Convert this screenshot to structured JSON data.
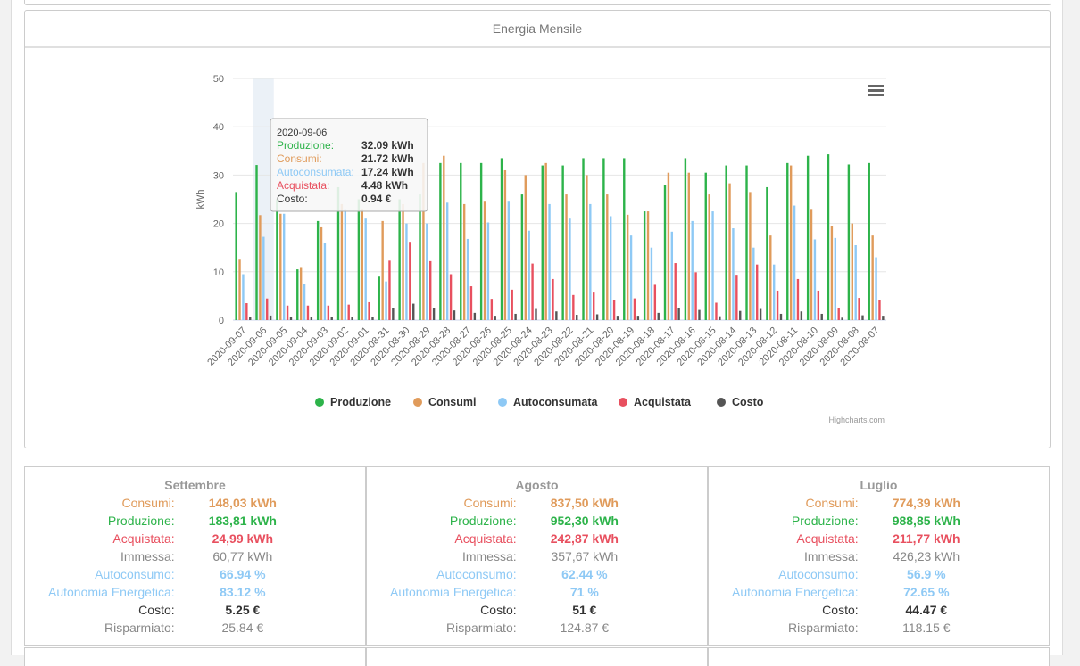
{
  "panel": {
    "title": "Energia Mensile"
  },
  "chart_data": {
    "type": "bar",
    "ylabel": "kWh",
    "ylim": [
      0,
      50
    ],
    "yticks": [
      0,
      10,
      20,
      30,
      40,
      50
    ],
    "legend_placement": "bottom",
    "credits": "Highcharts.com",
    "categories": [
      "2020-09-07",
      "2020-09-06",
      "2020-09-05",
      "2020-09-04",
      "2020-09-03",
      "2020-09-02",
      "2020-09-01",
      "2020-08-31",
      "2020-08-30",
      "2020-08-29",
      "2020-08-28",
      "2020-08-27",
      "2020-08-26",
      "2020-08-25",
      "2020-08-24",
      "2020-08-23",
      "2020-08-22",
      "2020-08-21",
      "2020-08-20",
      "2020-08-19",
      "2020-08-18",
      "2020-08-17",
      "2020-08-16",
      "2020-08-15",
      "2020-08-14",
      "2020-08-13",
      "2020-08-12",
      "2020-08-11",
      "2020-08-10",
      "2020-08-09",
      "2020-08-08",
      "2020-08-07"
    ],
    "series": [
      {
        "name": "Produzione",
        "color": "#2db34a",
        "values": [
          26.5,
          32.09,
          25,
          10.5,
          20.5,
          27.5,
          25,
          9,
          25,
          26,
          32.5,
          32.5,
          32.5,
          33.5,
          26,
          32,
          32,
          33.5,
          33.5,
          33.5,
          22.5,
          28,
          33.5,
          30.5,
          32,
          32,
          27.5,
          32.5,
          34,
          34.3,
          32.2,
          32.5
        ]
      },
      {
        "name": "Consumi",
        "color": "#e09b5b",
        "values": [
          12.5,
          21.72,
          22,
          10.8,
          19.2,
          24,
          23,
          20.5,
          24,
          32.5,
          34,
          24,
          24.5,
          31,
          30,
          32.5,
          26,
          30,
          26,
          21.8,
          22.5,
          30.5,
          30.5,
          26,
          28.3,
          26.5,
          17.5,
          32,
          23,
          19.5,
          20,
          17.5
        ]
      },
      {
        "name": "Autoconsumata",
        "color": "#8ec9f5",
        "values": [
          9.5,
          17.24,
          22,
          7.5,
          16,
          23,
          21,
          8,
          20,
          20,
          24.3,
          16.8,
          20.2,
          24.5,
          18.5,
          24,
          21,
          24,
          21.5,
          17.5,
          15,
          18.3,
          20.5,
          22.5,
          19,
          15,
          11.5,
          23.7,
          16.7,
          17,
          15.5,
          13
        ]
      },
      {
        "name": "Acquistata",
        "color": "#e8505f",
        "values": [
          3.5,
          4.48,
          3,
          3,
          3,
          3.2,
          3.7,
          12.3,
          16.2,
          12.2,
          9.5,
          7,
          4.4,
          6.3,
          11.7,
          8.5,
          5.2,
          5.7,
          4.2,
          4.5,
          7.3,
          11.8,
          9.9,
          3.6,
          9.2,
          11.5,
          6.1,
          8.5,
          6.1,
          2.4,
          4.6,
          4.2
        ]
      },
      {
        "name": "Costo",
        "color": "#555555",
        "values": [
          0.7,
          0.94,
          0.6,
          0.6,
          0.6,
          0.6,
          0.7,
          2.4,
          3.4,
          2.4,
          2,
          1.5,
          0.9,
          1.3,
          2.3,
          1.8,
          1.1,
          1.2,
          0.9,
          0.9,
          1.5,
          2.4,
          2.1,
          0.8,
          1.9,
          2.3,
          1.3,
          1.8,
          1.3,
          0.5,
          1,
          0.9
        ]
      }
    ],
    "tooltip": {
      "category_index": 1,
      "date": "2020-09-06",
      "rows": [
        {
          "label": "Produzione:",
          "value": "32.09 kWh",
          "color": "#2db34a"
        },
        {
          "label": "Consumi:",
          "value": "21.72 kWh",
          "color": "#e09b5b"
        },
        {
          "label": "Autoconsumata:",
          "value": "17.24 kWh",
          "color": "#8ec9f5"
        },
        {
          "label": "Acquistata:",
          "value": "4.48 kWh",
          "color": "#e8505f"
        },
        {
          "label": "Costo:",
          "value": "0.94 €",
          "color": "#333333"
        }
      ]
    }
  },
  "months": [
    {
      "name": "Settembre",
      "rows": [
        {
          "label": "Consumi:",
          "value": "148,03 kWh",
          "color": "#e09b5b",
          "bold": true
        },
        {
          "label": "Produzione:",
          "value": "183,81 kWh",
          "color": "#2db34a",
          "bold": true
        },
        {
          "label": "Acquistata:",
          "value": "24,99 kWh",
          "color": "#e8505f",
          "bold": true
        },
        {
          "label": "Immessa:",
          "value": "60,77 kWh",
          "color": "#888888",
          "bold": false
        },
        {
          "label": "Autoconsumo:",
          "value": "66.94 %",
          "color": "#8ec9f5",
          "bold": true
        },
        {
          "label": "Autonomia Energetica:",
          "value": "83.12 %",
          "color": "#8ec9f5",
          "bold": true
        },
        {
          "label": "Costo:",
          "value": "5.25 €",
          "color": "#333333",
          "bold": true
        },
        {
          "label": "Risparmiato:",
          "value": "25.84 €",
          "color": "#888888",
          "bold": false
        }
      ]
    },
    {
      "name": "Agosto",
      "rows": [
        {
          "label": "Consumi:",
          "value": "837,50 kWh",
          "color": "#e09b5b",
          "bold": true
        },
        {
          "label": "Produzione:",
          "value": "952,30 kWh",
          "color": "#2db34a",
          "bold": true
        },
        {
          "label": "Acquistata:",
          "value": "242,87 kWh",
          "color": "#e8505f",
          "bold": true
        },
        {
          "label": "Immessa:",
          "value": "357,67 kWh",
          "color": "#888888",
          "bold": false
        },
        {
          "label": "Autoconsumo:",
          "value": "62.44 %",
          "color": "#8ec9f5",
          "bold": true
        },
        {
          "label": "Autonomia Energetica:",
          "value": "71 %",
          "color": "#8ec9f5",
          "bold": true
        },
        {
          "label": "Costo:",
          "value": "51 €",
          "color": "#333333",
          "bold": true
        },
        {
          "label": "Risparmiato:",
          "value": "124.87 €",
          "color": "#888888",
          "bold": false
        }
      ]
    },
    {
      "name": "Luglio",
      "rows": [
        {
          "label": "Consumi:",
          "value": "774,39 kWh",
          "color": "#e09b5b",
          "bold": true
        },
        {
          "label": "Produzione:",
          "value": "988,85 kWh",
          "color": "#2db34a",
          "bold": true
        },
        {
          "label": "Acquistata:",
          "value": "211,77 kWh",
          "color": "#e8505f",
          "bold": true
        },
        {
          "label": "Immessa:",
          "value": "426,23 kWh",
          "color": "#888888",
          "bold": false
        },
        {
          "label": "Autoconsumo:",
          "value": "56.9 %",
          "color": "#8ec9f5",
          "bold": true
        },
        {
          "label": "Autonomia Energetica:",
          "value": "72.65 %",
          "color": "#8ec9f5",
          "bold": true
        },
        {
          "label": "Costo:",
          "value": "44.47 €",
          "color": "#333333",
          "bold": true
        },
        {
          "label": "Risparmiato:",
          "value": "118.15 €",
          "color": "#888888",
          "bold": false
        }
      ]
    }
  ]
}
